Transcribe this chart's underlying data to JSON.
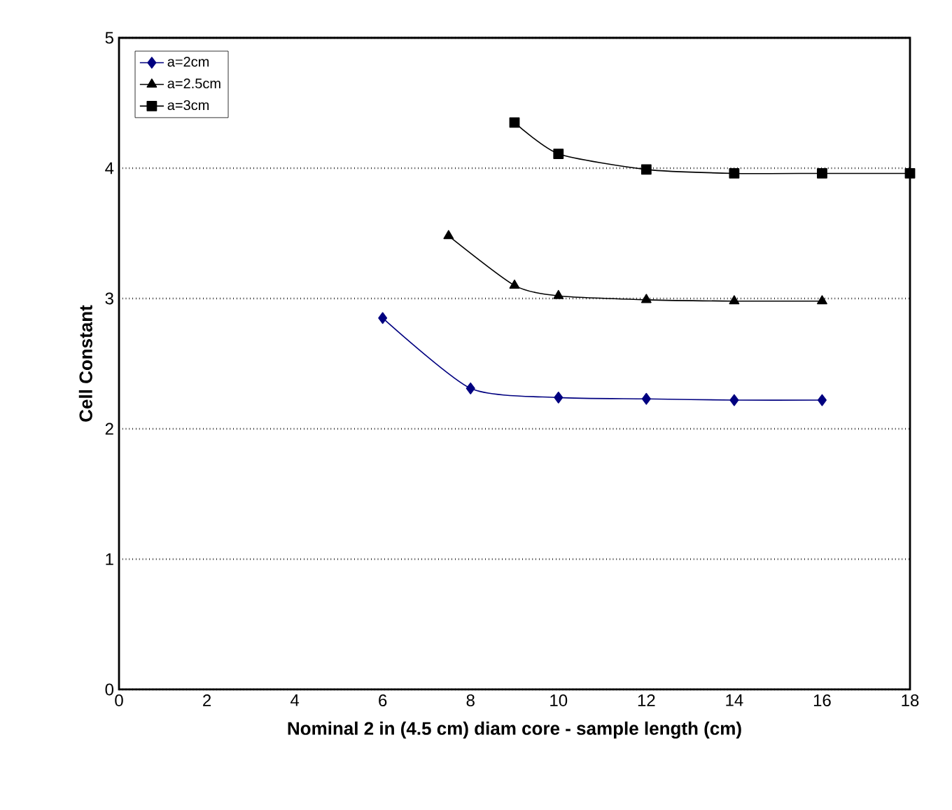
{
  "chart_data": {
    "type": "line",
    "xlabel": "Nominal 2 in (4.5 cm) diam core - sample length (cm)",
    "ylabel": "Cell Constant",
    "xlim": [
      0,
      18
    ],
    "ylim": [
      0,
      5
    ],
    "xticks": [
      0,
      2,
      4,
      6,
      8,
      10,
      12,
      14,
      16,
      18
    ],
    "yticks": [
      0,
      1,
      2,
      3,
      4,
      5
    ],
    "grid": "y",
    "legend": "top left",
    "series": [
      {
        "name": "a=2cm",
        "color": "#000080",
        "marker": "diamond",
        "x": [
          6,
          8,
          10,
          12,
          14,
          16
        ],
        "values": [
          2.85,
          2.31,
          2.24,
          2.23,
          2.22,
          2.22
        ]
      },
      {
        "name": "a=2.5cm",
        "color": "#000000",
        "marker": "triangle",
        "x": [
          7.5,
          9,
          10,
          12,
          14,
          16
        ],
        "values": [
          3.48,
          3.1,
          3.02,
          2.99,
          2.98,
          2.98
        ]
      },
      {
        "name": "a=3cm",
        "color": "#000000",
        "marker": "square",
        "x": [
          9,
          10,
          12,
          14,
          16,
          18
        ],
        "values": [
          4.35,
          4.11,
          3.99,
          3.96,
          3.96,
          3.96
        ]
      }
    ]
  }
}
